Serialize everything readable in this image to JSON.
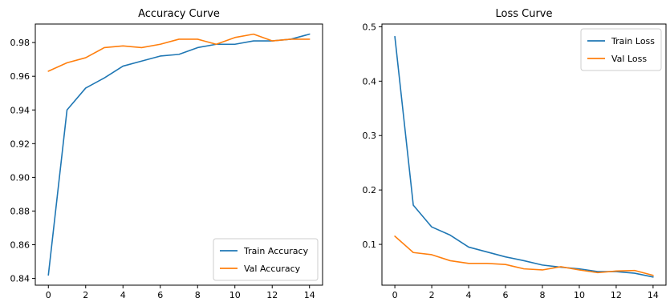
{
  "chart_data": [
    {
      "type": "line",
      "title": "Accuracy Curve",
      "xlabel": "",
      "ylabel": "",
      "xlim": [
        0,
        14
      ],
      "ylim": [
        0.836,
        0.991
      ],
      "xticks": [
        0,
        2,
        4,
        6,
        8,
        10,
        12,
        14
      ],
      "yticks": [
        0.84,
        0.86,
        0.88,
        0.9,
        0.92,
        0.94,
        0.96,
        0.98
      ],
      "ytick_labels": [
        "0.84",
        "0.86",
        "0.88",
        "0.90",
        "0.92",
        "0.94",
        "0.96",
        "0.98"
      ],
      "legend": "bottom-right",
      "grid": false,
      "x": [
        0,
        1,
        2,
        3,
        4,
        5,
        6,
        7,
        8,
        9,
        10,
        11,
        12,
        13,
        14
      ],
      "series": [
        {
          "name": "Train Accuracy",
          "color": "#1f77b4",
          "values": [
            0.842,
            0.94,
            0.953,
            0.959,
            0.966,
            0.969,
            0.972,
            0.973,
            0.977,
            0.979,
            0.979,
            0.981,
            0.981,
            0.982,
            0.985
          ]
        },
        {
          "name": "Val Accuracy",
          "color": "#ff7f0e",
          "values": [
            0.963,
            0.968,
            0.971,
            0.977,
            0.978,
            0.977,
            0.979,
            0.982,
            0.982,
            0.979,
            0.983,
            0.985,
            0.981,
            0.982,
            0.982
          ]
        }
      ]
    },
    {
      "type": "line",
      "title": "Loss Curve",
      "xlabel": "",
      "ylabel": "",
      "xlim": [
        0,
        14
      ],
      "ylim": [
        0.025,
        0.505
      ],
      "xticks": [
        0,
        2,
        4,
        6,
        8,
        10,
        12,
        14
      ],
      "yticks": [
        0.1,
        0.2,
        0.3,
        0.4,
        0.5
      ],
      "ytick_labels": [
        "0.1",
        "0.2",
        "0.3",
        "0.4",
        "0.5"
      ],
      "legend": "top-right",
      "grid": false,
      "x": [
        0,
        1,
        2,
        3,
        4,
        5,
        6,
        7,
        8,
        9,
        10,
        11,
        12,
        13,
        14
      ],
      "series": [
        {
          "name": "Train Loss",
          "color": "#1f77b4",
          "values": [
            0.482,
            0.172,
            0.132,
            0.117,
            0.095,
            0.086,
            0.077,
            0.07,
            0.062,
            0.058,
            0.055,
            0.05,
            0.05,
            0.047,
            0.04
          ]
        },
        {
          "name": "Val Loss",
          "color": "#ff7f0e",
          "values": [
            0.115,
            0.085,
            0.081,
            0.07,
            0.065,
            0.065,
            0.063,
            0.055,
            0.053,
            0.059,
            0.053,
            0.048,
            0.051,
            0.052,
            0.043
          ]
        }
      ]
    }
  ]
}
